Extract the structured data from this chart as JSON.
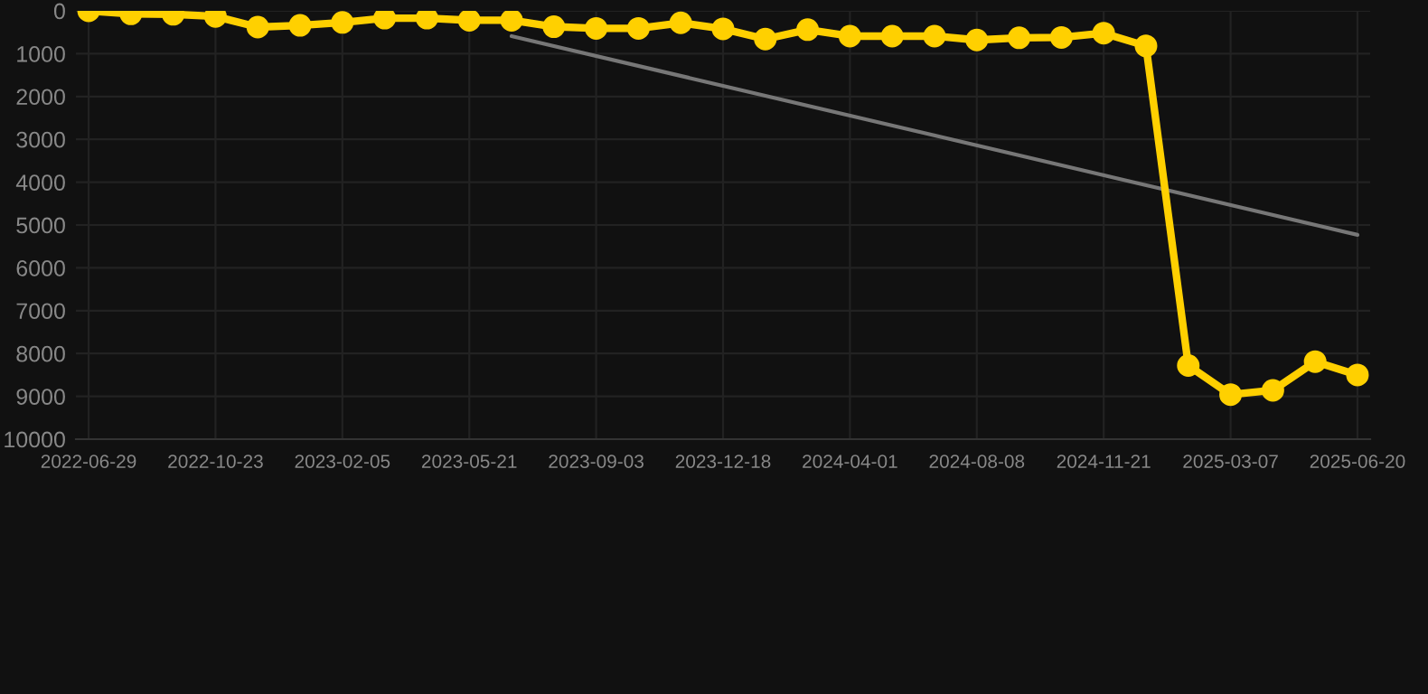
{
  "chart_data": {
    "type": "line",
    "categories": [
      "2022-06-29",
      null,
      null,
      "2022-10-23",
      null,
      null,
      "2023-02-05",
      null,
      null,
      "2023-05-21",
      null,
      null,
      "2023-09-03",
      null,
      null,
      "2023-12-18",
      null,
      null,
      "2024-04-01",
      null,
      null,
      "2024-08-08",
      null,
      null,
      "2024-11-21",
      null,
      null,
      "2025-03-07",
      null,
      null,
      "2025-06-20"
    ],
    "series": [
      {
        "color": "#ffd000",
        "marker": "circle",
        "values": [
          0,
          70,
          80,
          130,
          380,
          340,
          270,
          170,
          170,
          220,
          220,
          370,
          410,
          410,
          280,
          420,
          660,
          440,
          590,
          590,
          590,
          680,
          630,
          620,
          520,
          820,
          8280,
          8960,
          8860,
          8190,
          8500
        ]
      },
      {
        "color": "#777777",
        "marker": "none",
        "values": [
          null,
          null,
          null,
          null,
          null,
          null,
          null,
          null,
          null,
          null,
          590,
          null,
          null,
          null,
          null,
          null,
          null,
          null,
          null,
          null,
          null,
          null,
          null,
          null,
          null,
          null,
          null,
          null,
          null,
          null,
          5230
        ]
      }
    ],
    "ylim": [
      10000,
      0
    ],
    "yticks": [
      0,
      1000,
      2000,
      3000,
      4000,
      5000,
      6000,
      7000,
      8000,
      9000,
      10000
    ],
    "grid": true,
    "legend": false
  }
}
